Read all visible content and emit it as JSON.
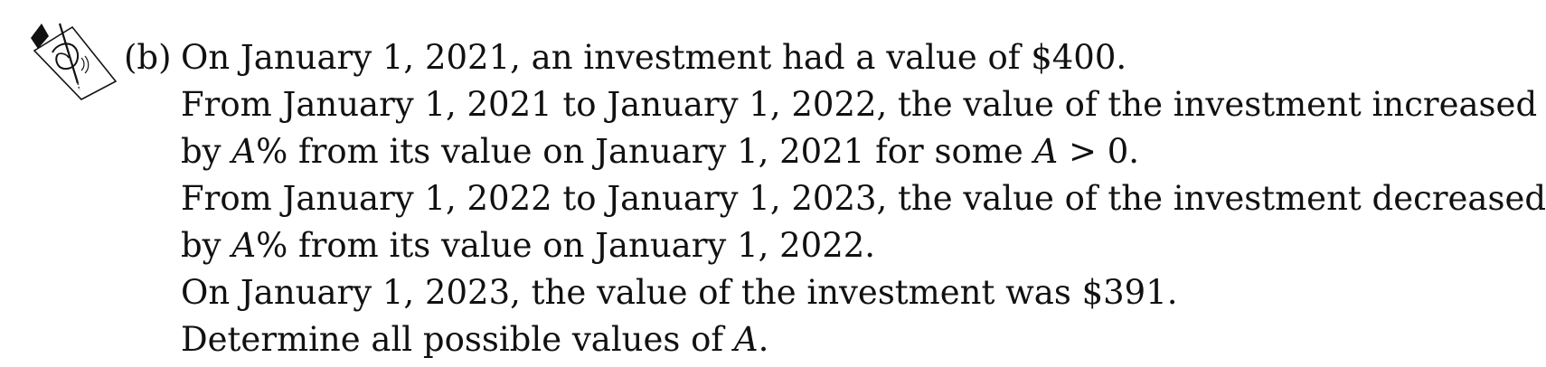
{
  "icon": "pencil-writing-icon",
  "part_label": "(b)",
  "lines": {
    "l1": "On January 1, 2021, an investment had a value of $400.",
    "l2": "From January 1, 2021 to January 1, 2022, the value of the investment increased",
    "l3": {
      "pre": "by ",
      "var": "A",
      "mid": "% from its value on January 1, 2021 for some ",
      "var2": "A",
      "post": " > 0."
    },
    "l4": "From January 1, 2022 to January 1, 2023, the value of the investment decreased",
    "l5": {
      "pre": "by ",
      "var": "A",
      "post": "% from its value on January 1, 2022."
    },
    "l6": "On January 1, 2023, the value of the investment was $391.",
    "l7": {
      "pre": "Determine all possible values of ",
      "var": "A",
      "post": "."
    }
  }
}
